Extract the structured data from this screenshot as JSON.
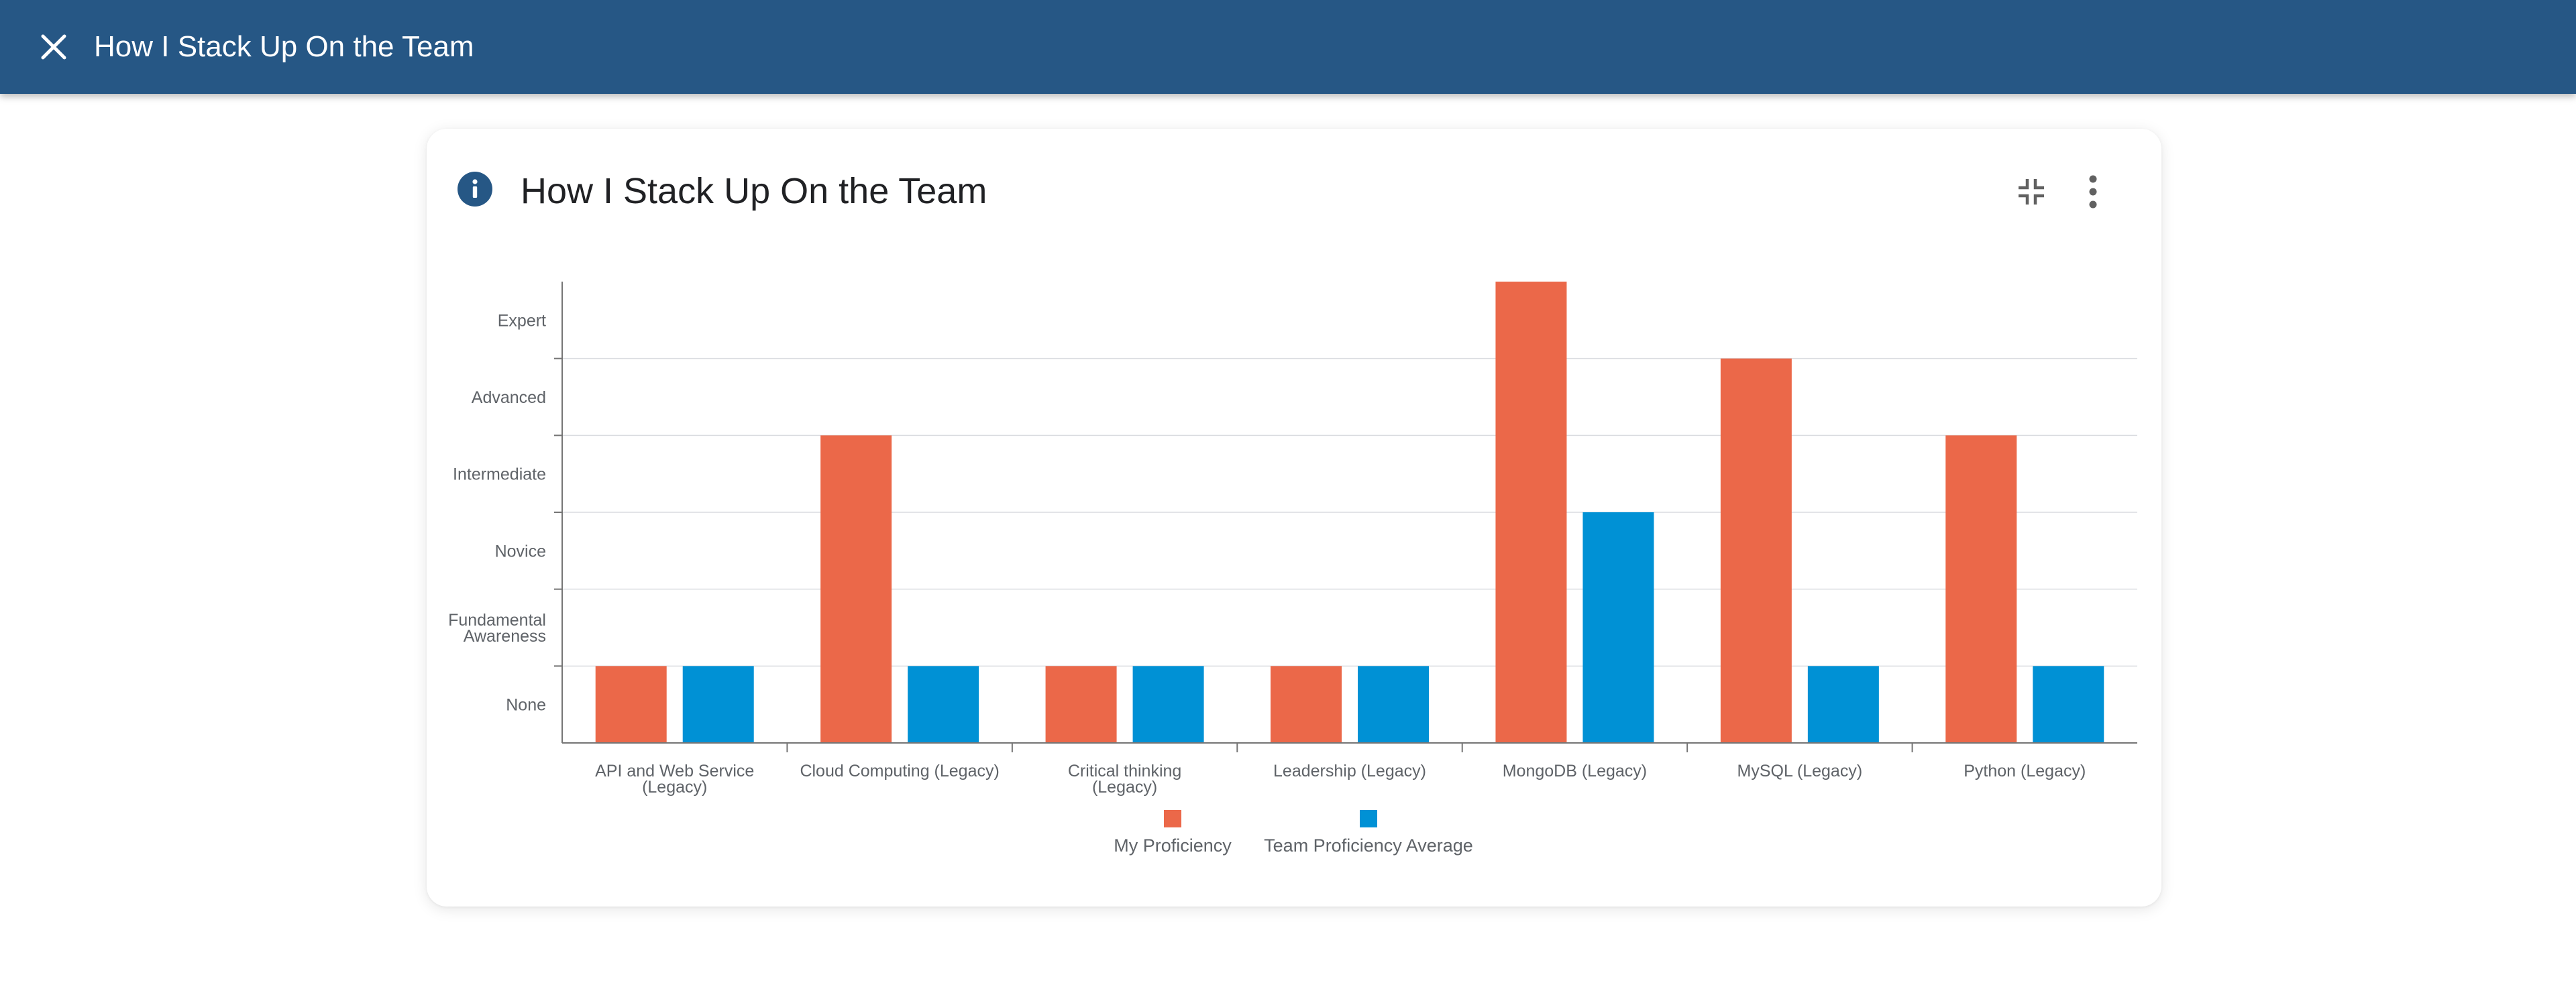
{
  "header": {
    "title": "How I Stack Up On the Team",
    "close_icon": "close-icon",
    "background": "#265785"
  },
  "card": {
    "title": "How I Stack Up On the Team",
    "info_icon": "info-icon",
    "collapse_icon": "collapse-icon",
    "more_icon": "more-vertical-icon"
  },
  "chart_data": {
    "type": "bar",
    "title": "",
    "xlabel": "",
    "ylabel": "",
    "y_levels": [
      "None",
      "Fundamental Awareness",
      "Novice",
      "Intermediate",
      "Advanced",
      "Expert"
    ],
    "ylim": [
      0,
      6
    ],
    "grid": true,
    "legend_position": "bottom",
    "categories": [
      "API and Web Service (Legacy)",
      "Cloud Computing (Legacy)",
      "Critical thinking (Legacy)",
      "Leadership (Legacy)",
      "MongoDB (Legacy)",
      "MySQL (Legacy)",
      "Python (Legacy)"
    ],
    "series": [
      {
        "name": "My Proficiency",
        "color": "#eb6849",
        "values": [
          1,
          4,
          1,
          1,
          6,
          5,
          4
        ]
      },
      {
        "name": "Team Proficiency Average",
        "color": "#0091d5",
        "values": [
          1,
          1,
          1,
          1,
          3,
          1,
          1
        ]
      }
    ]
  }
}
